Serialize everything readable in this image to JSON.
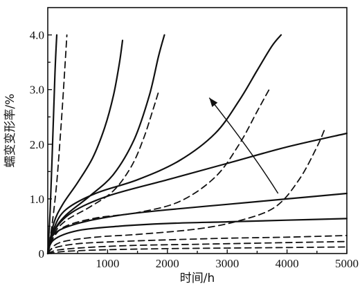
{
  "chart_data": {
    "type": "line",
    "title": "",
    "xlabel": "时间/h",
    "ylabel": "蠕变变形率/%",
    "xlim": [
      0,
      5000
    ],
    "ylim": [
      0,
      4.5
    ],
    "x_ticks": [
      1000,
      2000,
      3000,
      4000,
      5000
    ],
    "x_tick_labels": [
      "1000",
      "2000",
      "3000",
      "4000",
      "5000"
    ],
    "y_ticks": [
      0,
      1.0,
      2.0,
      3.0,
      4.0
    ],
    "y_tick_labels": [
      "0",
      "1.0",
      "2.0",
      "3.0",
      "4.0"
    ],
    "origin_label": "0",
    "grid": false,
    "legend": "none",
    "series": [
      {
        "style": "solid",
        "x": [
          0,
          40,
          80,
          120,
          150
        ],
        "y": [
          0,
          0.8,
          2.0,
          3.3,
          4.0
        ]
      },
      {
        "style": "dashed",
        "x": [
          0,
          80,
          150,
          220,
          280,
          320
        ],
        "y": [
          0,
          0.6,
          1.3,
          2.3,
          3.3,
          4.0
        ]
      },
      {
        "style": "solid",
        "x": [
          0,
          100,
          250,
          500,
          750,
          950,
          1100,
          1200,
          1250
        ],
        "y": [
          0,
          0.55,
          0.9,
          1.3,
          1.75,
          2.3,
          2.9,
          3.5,
          3.9
        ]
      },
      {
        "style": "solid",
        "x": [
          0,
          100,
          300,
          700,
          1100,
          1450,
          1700,
          1850,
          1950
        ],
        "y": [
          0,
          0.4,
          0.7,
          1.05,
          1.45,
          2.1,
          2.9,
          3.6,
          4.0
        ]
      },
      {
        "style": "dashed",
        "x": [
          0,
          100,
          300,
          700,
          1100,
          1400,
          1600,
          1750,
          1850
        ],
        "y": [
          0,
          0.35,
          0.6,
          0.85,
          1.15,
          1.6,
          2.1,
          2.6,
          2.95
        ]
      },
      {
        "style": "solid",
        "x": [
          0,
          100,
          300,
          800,
          1500,
          2200,
          2800,
          3200,
          3500,
          3750,
          3900
        ],
        "y": [
          0,
          0.45,
          0.8,
          1.1,
          1.35,
          1.7,
          2.2,
          2.8,
          3.35,
          3.8,
          4.0
        ]
      },
      {
        "style": "dashed",
        "x": [
          0,
          100,
          300,
          800,
          1500,
          2200,
          2800,
          3200,
          3500,
          3700
        ],
        "y": [
          0,
          0.3,
          0.5,
          0.65,
          0.75,
          0.95,
          1.4,
          2.0,
          2.6,
          3.0
        ]
      },
      {
        "style": "solid",
        "x": [
          0,
          100,
          400,
          1000,
          2000,
          3000,
          4000,
          5000
        ],
        "y": [
          0,
          0.4,
          0.75,
          1.05,
          1.35,
          1.65,
          1.95,
          2.2
        ]
      },
      {
        "style": "dashed",
        "x": [
          0,
          200,
          800,
          1500,
          2500,
          3200,
          3800,
          4200,
          4500,
          4620
        ],
        "y": [
          0,
          0.2,
          0.3,
          0.35,
          0.45,
          0.6,
          0.85,
          1.35,
          1.95,
          2.25
        ]
      },
      {
        "style": "solid",
        "x": [
          0,
          100,
          500,
          1200,
          2000,
          3000,
          4000,
          5000
        ],
        "y": [
          0,
          0.35,
          0.55,
          0.7,
          0.8,
          0.9,
          1.0,
          1.1
        ]
      },
      {
        "style": "solid",
        "x": [
          0,
          100,
          500,
          1200,
          2000,
          3000,
          4000,
          5000
        ],
        "y": [
          0,
          0.25,
          0.42,
          0.5,
          0.55,
          0.58,
          0.61,
          0.64
        ]
      },
      {
        "style": "dashed",
        "x": [
          0,
          100,
          500,
          1200,
          2000,
          3000,
          4000,
          5000
        ],
        "y": [
          0,
          0.1,
          0.18,
          0.22,
          0.25,
          0.28,
          0.3,
          0.33
        ]
      },
      {
        "style": "dashed",
        "x": [
          0,
          200,
          800,
          1500,
          2500,
          3500,
          4500,
          5000
        ],
        "y": [
          0,
          0.07,
          0.12,
          0.15,
          0.17,
          0.19,
          0.21,
          0.22
        ]
      },
      {
        "style": "dashed",
        "x": [
          0,
          300,
          1000,
          2000,
          3000,
          4000,
          5000
        ],
        "y": [
          0,
          0.04,
          0.07,
          0.09,
          0.1,
          0.11,
          0.12
        ]
      }
    ],
    "arrow": {
      "from": [
        3850,
        1.1
      ],
      "to": [
        2700,
        2.85
      ]
    }
  }
}
